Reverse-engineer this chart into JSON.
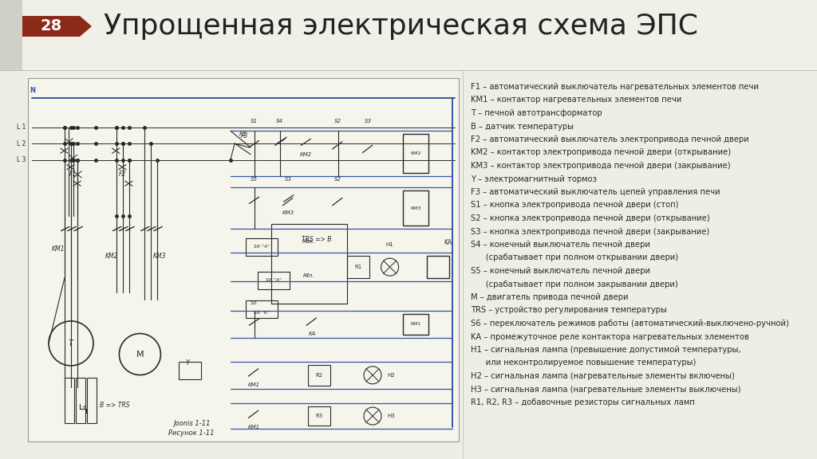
{
  "bg_color": "#eeeee4",
  "slide_bg": "#f0f0e8",
  "title": "Упрощенная электрическая схема ЭПС",
  "title_fontsize": 26,
  "title_color": "#222222",
  "page_number": "28",
  "page_badge_color": "#8b2a18",
  "page_number_color": "#ffffff",
  "legend_lines": [
    "F1 – автоматический выключатель нагревательных элементов печи",
    "KM1 – контактор нагревательных элементов печи",
    "T – печной автотрансформатор",
    "B – датчик температуры",
    "F2 – автоматический выключатель электропривода печной двери",
    "KM2 – контактор электропривода печной двери (открывание)",
    "KM3 – контактор электропривода печной двери (закрывание)",
    "Y – электромагнитный тормоз",
    "F3 – автоматический выключатель цепей управления печи",
    "S1 – кнопка электропривода печной двери (стоп)",
    "S2 – кнопка электропривода печной двери (открывание)",
    "S3 – кнопка электропривода печной двери (закрывание)",
    "S4 – конечный выключатель печной двери",
    "      (срабатывает при полном открывании двери)",
    "S5 – конечный выключатель печной двери",
    "      (срабатывает при полном закрывании двери)",
    "M – двигатель привода печной двери",
    "TRS – устройство регулирования температуры",
    "S6 – переключатель режимов работы (автоматический-выключено-ручной)",
    "KA – промежуточное реле контактора нагревательных элементов",
    "H1 – сигнальная лампа (превышение допустимой температуры,",
    "      или неконтролируемое повышение температуры)",
    "H2 – сигнальная лампа (нагревательные элементы включены)",
    "H3 – сигнальная лампа (нагревательные элементы выключены)",
    "R1, R2, R3 – добавочные резисторы сигнальных ламп"
  ],
  "legend_fontsize": 7.2,
  "legend_color": "#2a2a2a",
  "diagram_label1": "Joonis 1-11",
  "diagram_label2": "Рисунок 1-11",
  "line_color_blue": "#3355aa",
  "line_color_black": "#2a2a2a",
  "line_color_gray": "#555555"
}
